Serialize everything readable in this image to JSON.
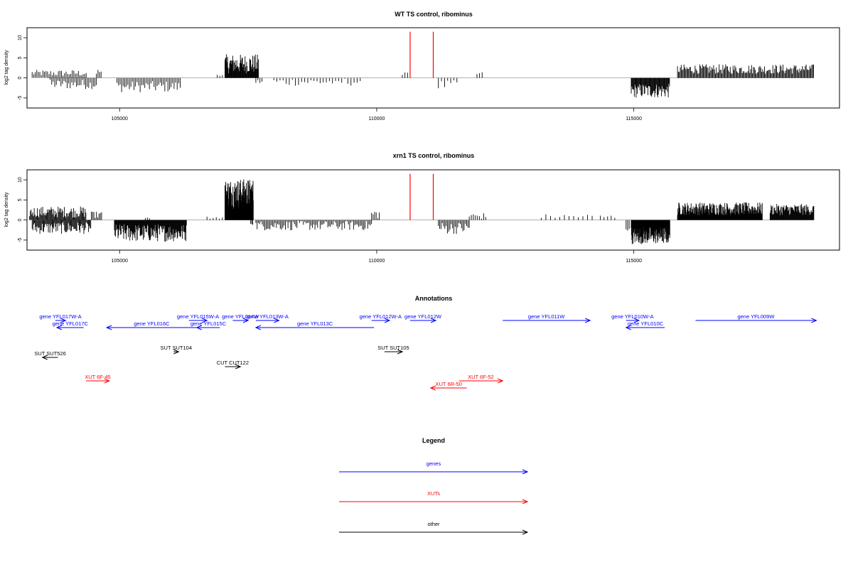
{
  "chart_data": [
    {
      "type": "bar",
      "title": "WT TS control, ribominus",
      "ylabel": "log2 tag density",
      "xlabel": "",
      "xlim": [
        103200,
        119000
      ],
      "ylim": [
        -7.5,
        12.5
      ],
      "x_ticks": [
        105000,
        110000,
        115000
      ],
      "y_ticks": [
        -5,
        0,
        5,
        10
      ],
      "highlight_lines": [
        110650,
        111100
      ],
      "highlight_value": 11.5,
      "regions": [
        {
          "start": 103300,
          "end": 104350,
          "mean": 1.2,
          "amp": 0.8,
          "step": 30
        },
        {
          "start": 103650,
          "end": 104550,
          "mean": -1.6,
          "amp": 1.2,
          "step": 30
        },
        {
          "start": 104550,
          "end": 104650,
          "mean": 1.5,
          "amp": 0.8,
          "step": 30
        },
        {
          "start": 104950,
          "end": 106200,
          "mean": -2.2,
          "amp": 1.4,
          "step": 30
        },
        {
          "start": 106900,
          "end": 107000,
          "mean": 0.8,
          "amp": 0.3,
          "step": 50
        },
        {
          "start": 107050,
          "end": 107700,
          "mean": 3.5,
          "amp": 2.4,
          "step": 10
        },
        {
          "start": 107650,
          "end": 107800,
          "mean": -1.0,
          "amp": 0.6,
          "step": 40
        },
        {
          "start": 108000,
          "end": 109700,
          "mean": -1.0,
          "amp": 1.0,
          "step": 60
        },
        {
          "start": 110500,
          "end": 110600,
          "mean": 1.5,
          "amp": 0.8,
          "step": 50
        },
        {
          "start": 111200,
          "end": 111600,
          "mean": -1.8,
          "amp": 1.2,
          "step": 60
        },
        {
          "start": 111950,
          "end": 112050,
          "mean": 1.0,
          "amp": 0.5,
          "step": 50
        },
        {
          "start": 114950,
          "end": 115700,
          "mean": -3.2,
          "amp": 1.8,
          "step": 12
        },
        {
          "start": 115850,
          "end": 118500,
          "mean": 2.2,
          "amp": 1.2,
          "step": 18
        }
      ]
    },
    {
      "type": "bar",
      "title": "xrn1 TS control, ribominus",
      "ylabel": "log2 tag density",
      "xlabel": "",
      "xlim": [
        103200,
        119000
      ],
      "ylim": [
        -7.5,
        12.5
      ],
      "x_ticks": [
        105000,
        110000,
        115000
      ],
      "y_ticks": [
        -5,
        0,
        5,
        10
      ],
      "highlight_lines": [
        110650,
        111100
      ],
      "highlight_value": 11.5,
      "regions": [
        {
          "start": 103250,
          "end": 104350,
          "mean": 2.0,
          "amp": 1.4,
          "step": 15
        },
        {
          "start": 103300,
          "end": 104450,
          "mean": -2.0,
          "amp": 1.5,
          "step": 15
        },
        {
          "start": 104450,
          "end": 104650,
          "mean": 1.3,
          "amp": 0.8,
          "step": 25
        },
        {
          "start": 104900,
          "end": 106300,
          "mean": -3.2,
          "amp": 2.2,
          "step": 10
        },
        {
          "start": 105500,
          "end": 105600,
          "mean": 0.8,
          "amp": 0.4,
          "step": 40
        },
        {
          "start": 106700,
          "end": 107000,
          "mean": 0.6,
          "amp": 0.3,
          "step": 60
        },
        {
          "start": 107050,
          "end": 107600,
          "mean": 6.5,
          "amp": 3.8,
          "step": 5
        },
        {
          "start": 107550,
          "end": 107600,
          "mean": -0.8,
          "amp": 0.4,
          "step": 20
        },
        {
          "start": 107650,
          "end": 109900,
          "mean": -1.4,
          "amp": 1.2,
          "step": 25
        },
        {
          "start": 109900,
          "end": 110050,
          "mean": 1.5,
          "amp": 1.2,
          "step": 30
        },
        {
          "start": 111200,
          "end": 111800,
          "mean": -2.0,
          "amp": 1.5,
          "step": 25
        },
        {
          "start": 111800,
          "end": 112150,
          "mean": 1.0,
          "amp": 0.8,
          "step": 40
        },
        {
          "start": 113200,
          "end": 114200,
          "mean": 0.9,
          "amp": 0.6,
          "step": 90
        },
        {
          "start": 114350,
          "end": 114650,
          "mean": 0.8,
          "amp": 0.5,
          "step": 70
        },
        {
          "start": 114850,
          "end": 114920,
          "mean": -2.0,
          "amp": 0.8,
          "step": 30
        },
        {
          "start": 114950,
          "end": 115700,
          "mean": -3.8,
          "amp": 2.2,
          "step": 6
        },
        {
          "start": 115850,
          "end": 117500,
          "mean": 2.8,
          "amp": 1.6,
          "step": 8
        },
        {
          "start": 117650,
          "end": 118500,
          "mean": 2.6,
          "amp": 1.4,
          "step": 10
        }
      ]
    }
  ],
  "annotations": {
    "title": "Annotations",
    "genes": [
      {
        "label": "gene YFL017W-A",
        "start": 103750,
        "end": 103950,
        "strand": "+"
      },
      {
        "label": "gene YFL017C",
        "start": 103780,
        "end": 104300,
        "strand": "-"
      },
      {
        "label": "gene YFL016C",
        "start": 104750,
        "end": 106500,
        "strand": "-"
      },
      {
        "label": "gene YFL015W-A",
        "start": 106350,
        "end": 106700,
        "strand": "+"
      },
      {
        "label": "gene YFL015C",
        "start": 106500,
        "end": 106950,
        "strand": "-"
      },
      {
        "label": "gene YFL014W",
        "start": 107200,
        "end": 107500,
        "strand": "+"
      },
      {
        "label": "gene YFL013W-A",
        "start": 107650,
        "end": 108100,
        "strand": "+"
      },
      {
        "label": "gene YFL013C",
        "start": 107650,
        "end": 109950,
        "strand": "-"
      },
      {
        "label": "gene YFL012W-A",
        "start": 109900,
        "end": 110250,
        "strand": "+"
      },
      {
        "label": "gene YFL012W",
        "start": 110650,
        "end": 111150,
        "strand": "+"
      },
      {
        "label": "gene YFL011W",
        "start": 112450,
        "end": 114150,
        "strand": "+"
      },
      {
        "label": "gene YFL010W-A",
        "start": 114850,
        "end": 115100,
        "strand": "+"
      },
      {
        "label": "gene YFL010C",
        "start": 114850,
        "end": 115600,
        "strand": "-"
      },
      {
        "label": "gene YFL009W",
        "start": 116200,
        "end": 118550,
        "strand": "+"
      }
    ],
    "others": [
      {
        "label": "SUT SUT526",
        "start": 103500,
        "end": 103800,
        "strand": "-"
      },
      {
        "label": "SUT SUT104",
        "start": 106050,
        "end": 106150,
        "strand": "+"
      },
      {
        "label": "CUT CUT122",
        "start": 107050,
        "end": 107350,
        "strand": "+"
      },
      {
        "label": "SUT SUT105",
        "start": 110150,
        "end": 110500,
        "strand": "+"
      }
    ],
    "xuts": [
      {
        "label": "XUT 6F-45",
        "start": 104350,
        "end": 104800,
        "strand": "+"
      },
      {
        "label": "XUT 6F-52",
        "start": 111600,
        "end": 112450,
        "strand": "+"
      },
      {
        "label": "XUT 6R-50",
        "start": 111050,
        "end": 111750,
        "strand": "-"
      }
    ]
  },
  "legend": {
    "title": "Legend",
    "items": [
      {
        "label": "genes",
        "color": "#0000ff"
      },
      {
        "label": "XUTs",
        "color": "#ff0000"
      },
      {
        "label": "other",
        "color": "#000000"
      }
    ]
  },
  "colors": {
    "gene": "#0000ff",
    "xut": "#ff0000",
    "other": "#000000",
    "highlight": "#ff0000",
    "baseline": "#999999"
  }
}
